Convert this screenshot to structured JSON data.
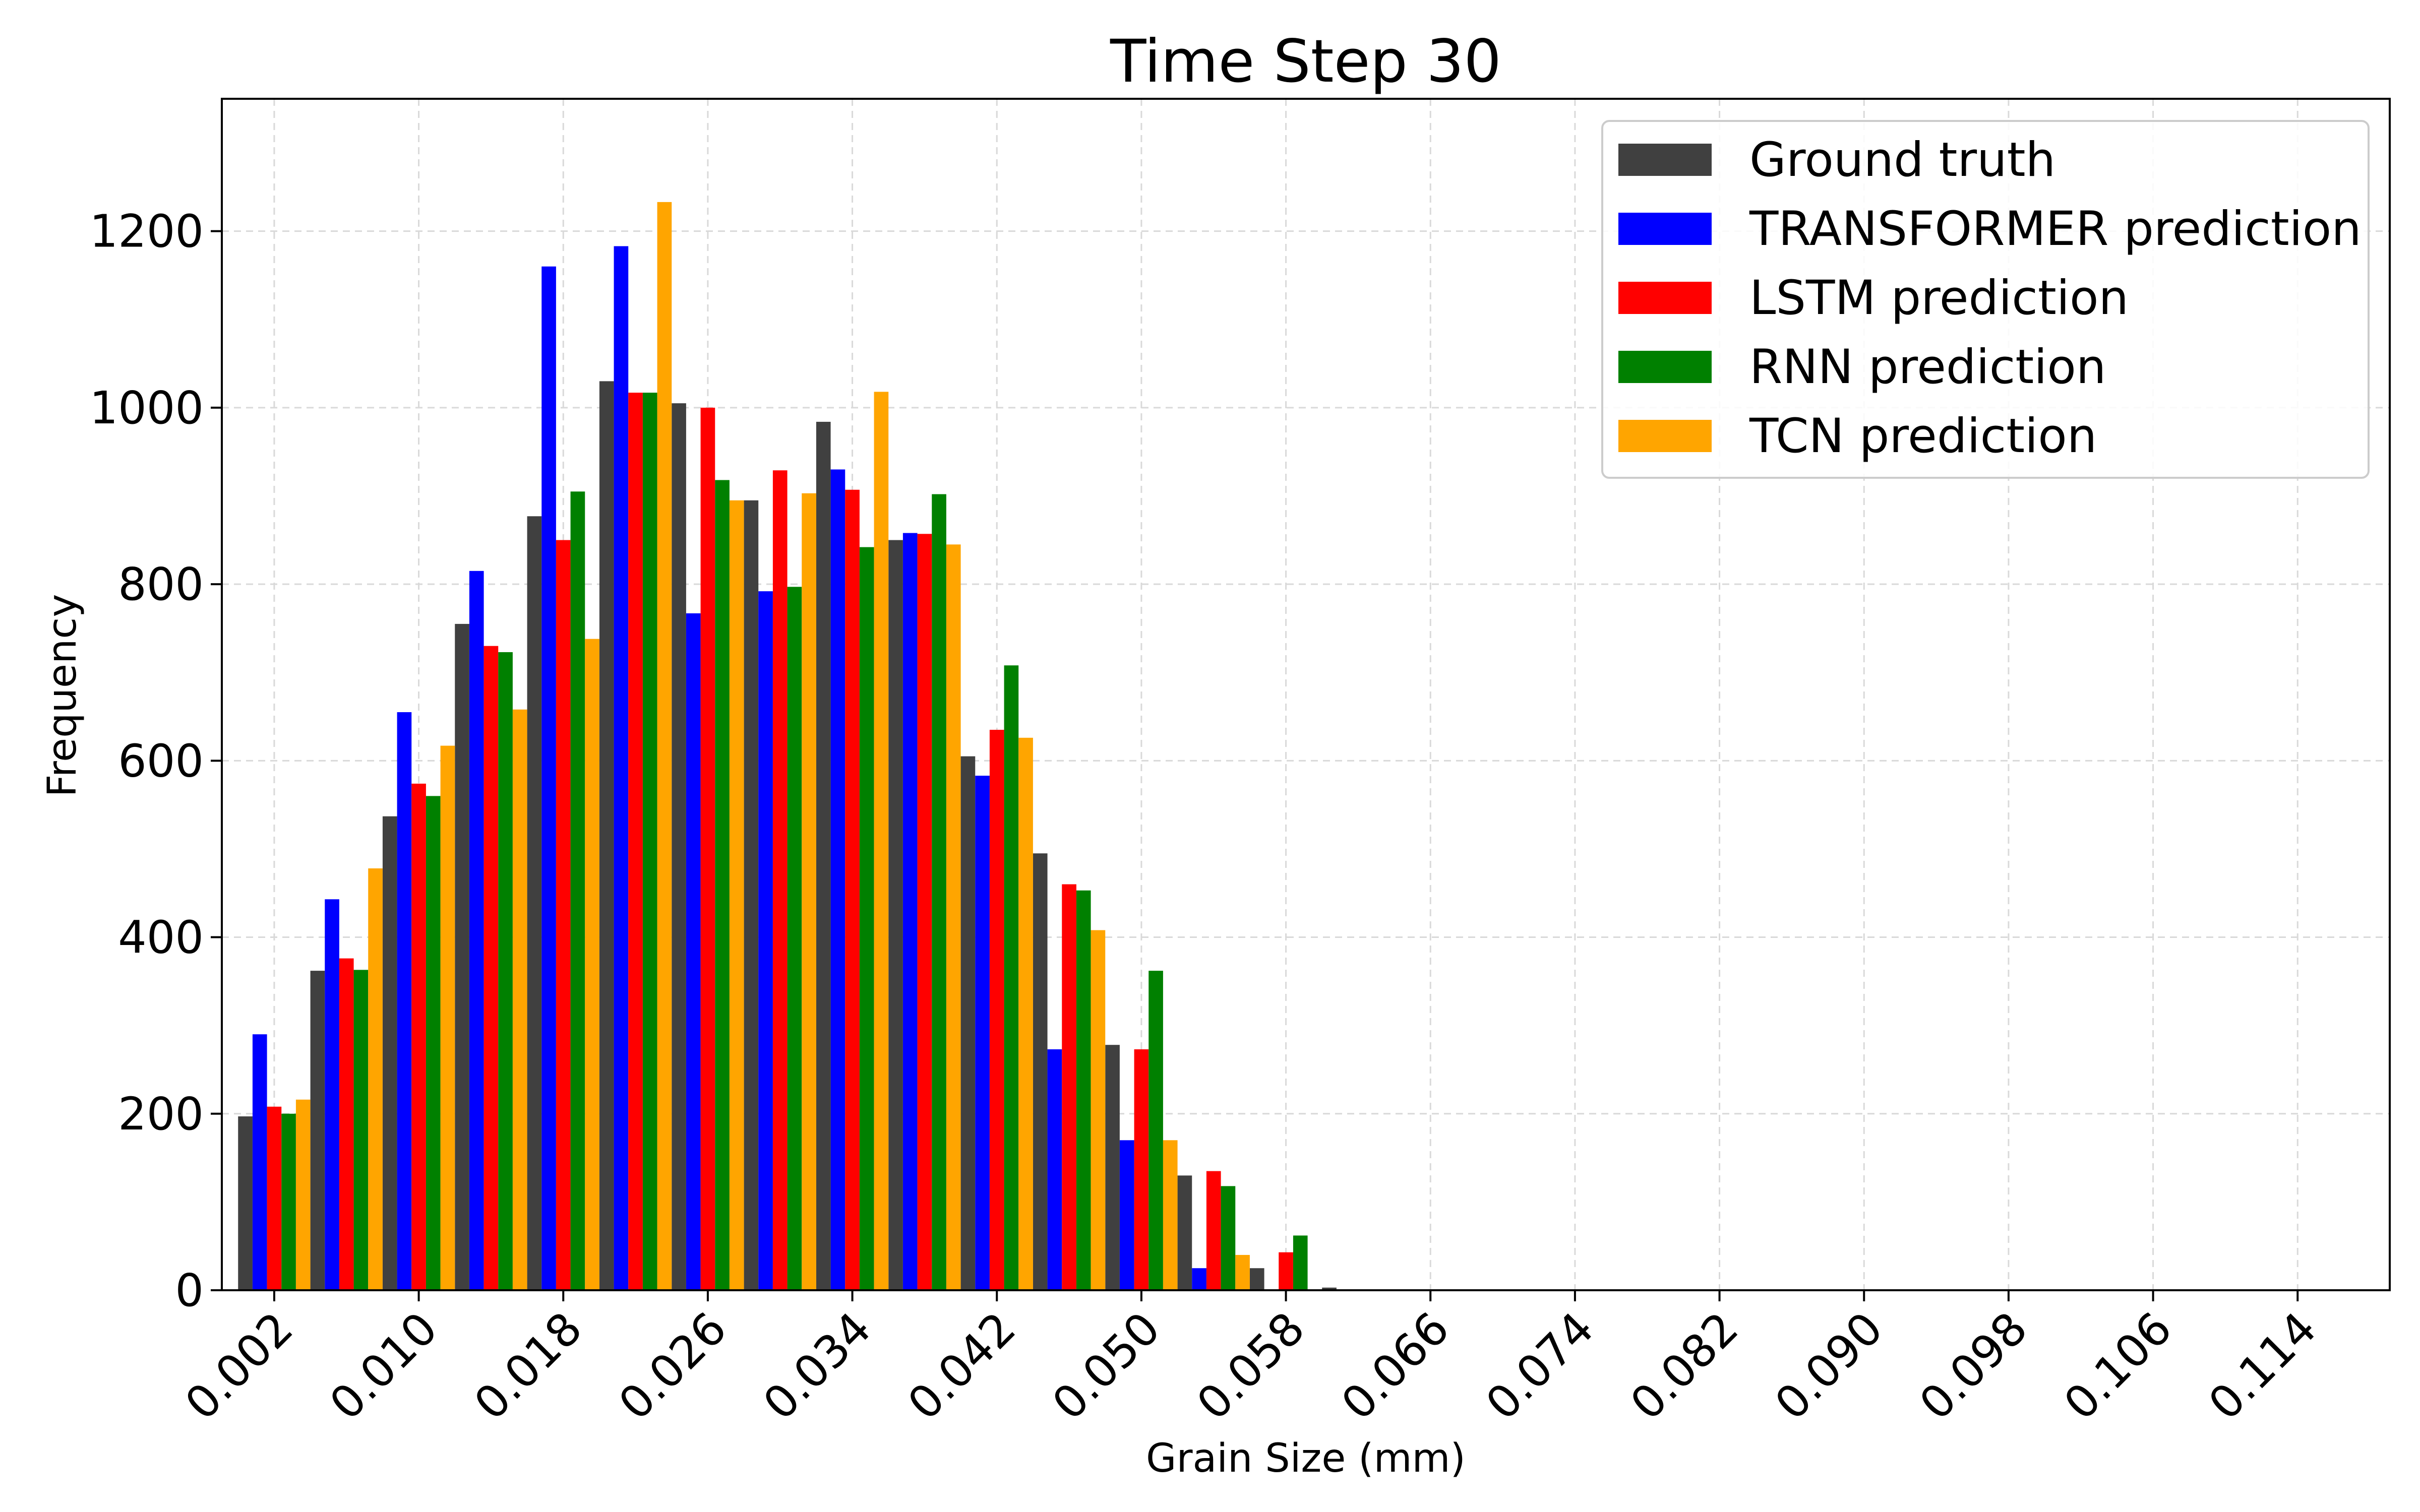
{
  "chart_data": {
    "type": "bar",
    "title": "Time Step 30",
    "xlabel": "Grain Size (mm)",
    "ylabel": "Frequency",
    "ylim": [
      0,
      1350
    ],
    "yticks": [
      0,
      200,
      400,
      600,
      800,
      1000,
      1200
    ],
    "xlim": [
      -0.0009,
      0.1191
    ],
    "xticks": [
      0.002,
      0.01,
      0.018,
      0.026,
      0.034,
      0.042,
      0.05,
      0.058,
      0.066,
      0.074,
      0.082,
      0.09,
      0.098,
      0.106,
      0.114
    ],
    "xtick_labels": [
      "0.002",
      "0.010",
      "0.018",
      "0.026",
      "0.034",
      "0.042",
      "0.050",
      "0.058",
      "0.066",
      "0.074",
      "0.082",
      "0.090",
      "0.098",
      "0.106",
      "0.114"
    ],
    "bin_width": 0.004,
    "categories": [
      0.002,
      0.006,
      0.01,
      0.014,
      0.018,
      0.022,
      0.026,
      0.03,
      0.034,
      0.038,
      0.042,
      0.046,
      0.05,
      0.054,
      0.058,
      0.062
    ],
    "grid": true,
    "legend_position": "top-right",
    "series": [
      {
        "name": "Ground truth",
        "color": "#404040",
        "values": [
          197,
          362,
          537,
          755,
          877,
          1030,
          1005,
          895,
          984,
          850,
          605,
          495,
          278,
          130,
          25,
          3
        ]
      },
      {
        "name": "TRANSFORMER prediction",
        "color": "#0000ff",
        "values": [
          290,
          443,
          655,
          815,
          1160,
          1183,
          767,
          792,
          930,
          858,
          583,
          273,
          170,
          25,
          0,
          0
        ]
      },
      {
        "name": "LSTM prediction",
        "color": "#ff0000",
        "values": [
          208,
          376,
          574,
          730,
          850,
          1017,
          1000,
          929,
          907,
          857,
          635,
          460,
          273,
          135,
          43,
          0
        ]
      },
      {
        "name": "RNN prediction",
        "color": "#008000",
        "values": [
          200,
          363,
          560,
          723,
          905,
          1017,
          918,
          797,
          842,
          902,
          708,
          453,
          362,
          118,
          62,
          0
        ]
      },
      {
        "name": "TCN prediction",
        "color": "#ffa500",
        "values": [
          216,
          478,
          617,
          658,
          738,
          1233,
          895,
          903,
          1018,
          845,
          626,
          408,
          170,
          40,
          0,
          0
        ]
      }
    ]
  }
}
